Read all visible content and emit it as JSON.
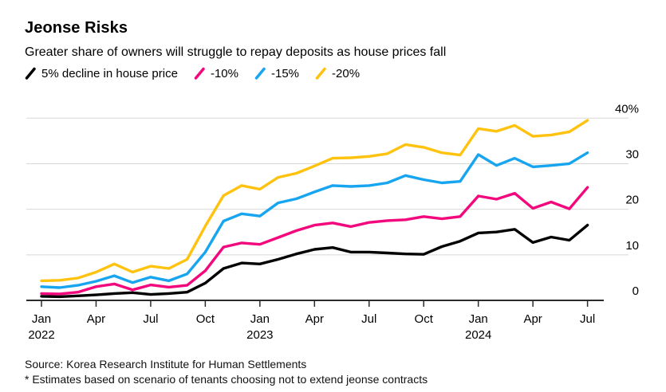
{
  "header": {
    "title": "Jeonse Risks",
    "subtitle": "Greater share of owners will struggle to repay deposits as house prices fall"
  },
  "footer": {
    "source": "Source: Korea Research Institute for Human Settlements",
    "note": "* Estimates based on scenario of tenants choosing not to extend jeonse contracts"
  },
  "colors": {
    "background": "#ffffff",
    "grid": "#d8d8d8",
    "axis": "#2b2b2b",
    "text": "#000000"
  },
  "chart_data": {
    "type": "line",
    "title": "Jeonse Risks",
    "subtitle": "Greater share of owners will struggle to repay deposits as house prices fall",
    "unit": "%",
    "ylim": [
      0,
      40
    ],
    "grid": "horizontal",
    "legend_position": "top",
    "x_months": [
      "2022-01",
      "2022-02",
      "2022-03",
      "2022-04",
      "2022-05",
      "2022-06",
      "2022-07",
      "2022-08",
      "2022-09",
      "2022-10",
      "2022-11",
      "2022-12",
      "2023-01",
      "2023-02",
      "2023-03",
      "2023-04",
      "2023-05",
      "2023-06",
      "2023-07",
      "2023-08",
      "2023-09",
      "2023-10",
      "2023-11",
      "2023-12",
      "2024-01",
      "2024-02",
      "2024-03",
      "2024-04",
      "2024-05",
      "2024-06",
      "2024-07"
    ],
    "series": [
      {
        "name": "5% decline in house price",
        "color": "#000000",
        "values": [
          0.9,
          0.8,
          1.0,
          1.2,
          1.5,
          1.7,
          1.3,
          1.5,
          1.8,
          3.8,
          7.0,
          8.2,
          8.0,
          9.0,
          10.2,
          11.2,
          11.6,
          10.6,
          10.6,
          10.4,
          10.2,
          10.1,
          11.8,
          13.0,
          14.8,
          15.0,
          15.6,
          12.7,
          13.9,
          13.2,
          16.5
        ]
      },
      {
        "name": "-10%",
        "color": "#f2077c",
        "values": [
          1.5,
          1.4,
          1.8,
          3.0,
          3.6,
          2.3,
          3.4,
          2.9,
          3.3,
          6.5,
          11.7,
          12.6,
          12.3,
          13.8,
          15.3,
          16.5,
          17.0,
          16.2,
          17.1,
          17.5,
          17.7,
          18.4,
          17.9,
          18.4,
          22.9,
          22.2,
          23.5,
          20.2,
          21.6,
          20.1,
          24.8
        ]
      },
      {
        "name": "-15%",
        "color": "#18a5f0",
        "values": [
          3.0,
          2.8,
          3.3,
          4.2,
          5.4,
          3.9,
          5.1,
          4.3,
          5.8,
          10.6,
          17.4,
          19.0,
          18.5,
          21.4,
          22.3,
          23.8,
          25.2,
          25.0,
          25.2,
          25.8,
          27.4,
          26.5,
          25.8,
          26.1,
          32.0,
          29.6,
          31.2,
          29.3,
          29.6,
          30.0,
          32.4
        ]
      },
      {
        "name": "-20%",
        "color": "#ffc20e",
        "values": [
          4.3,
          4.4,
          4.9,
          6.2,
          8.0,
          6.2,
          7.5,
          7.0,
          9.0,
          16.3,
          23.0,
          25.2,
          24.4,
          27.0,
          27.9,
          29.5,
          31.2,
          31.3,
          31.6,
          32.2,
          34.2,
          33.6,
          32.4,
          31.9,
          37.7,
          37.1,
          38.4,
          36.0,
          36.3,
          37.0,
          39.5
        ]
      }
    ],
    "yticks": [
      {
        "value": 0,
        "label": "0"
      },
      {
        "value": 10,
        "label": "10"
      },
      {
        "value": 20,
        "label": "20"
      },
      {
        "value": 30,
        "label": "30"
      },
      {
        "value": 40,
        "label": "40%"
      }
    ],
    "xticks": [
      {
        "month_index": 0,
        "label": "Jan",
        "year": "2022"
      },
      {
        "month_index": 3,
        "label": "Apr"
      },
      {
        "month_index": 6,
        "label": "Jul"
      },
      {
        "month_index": 9,
        "label": "Oct"
      },
      {
        "month_index": 12,
        "label": "Jan",
        "year": "2023"
      },
      {
        "month_index": 15,
        "label": "Apr"
      },
      {
        "month_index": 18,
        "label": "Jul"
      },
      {
        "month_index": 21,
        "label": "Oct"
      },
      {
        "month_index": 24,
        "label": "Jan",
        "year": "2024"
      },
      {
        "month_index": 27,
        "label": "Apr"
      },
      {
        "month_index": 30,
        "label": "Jul"
      }
    ]
  }
}
